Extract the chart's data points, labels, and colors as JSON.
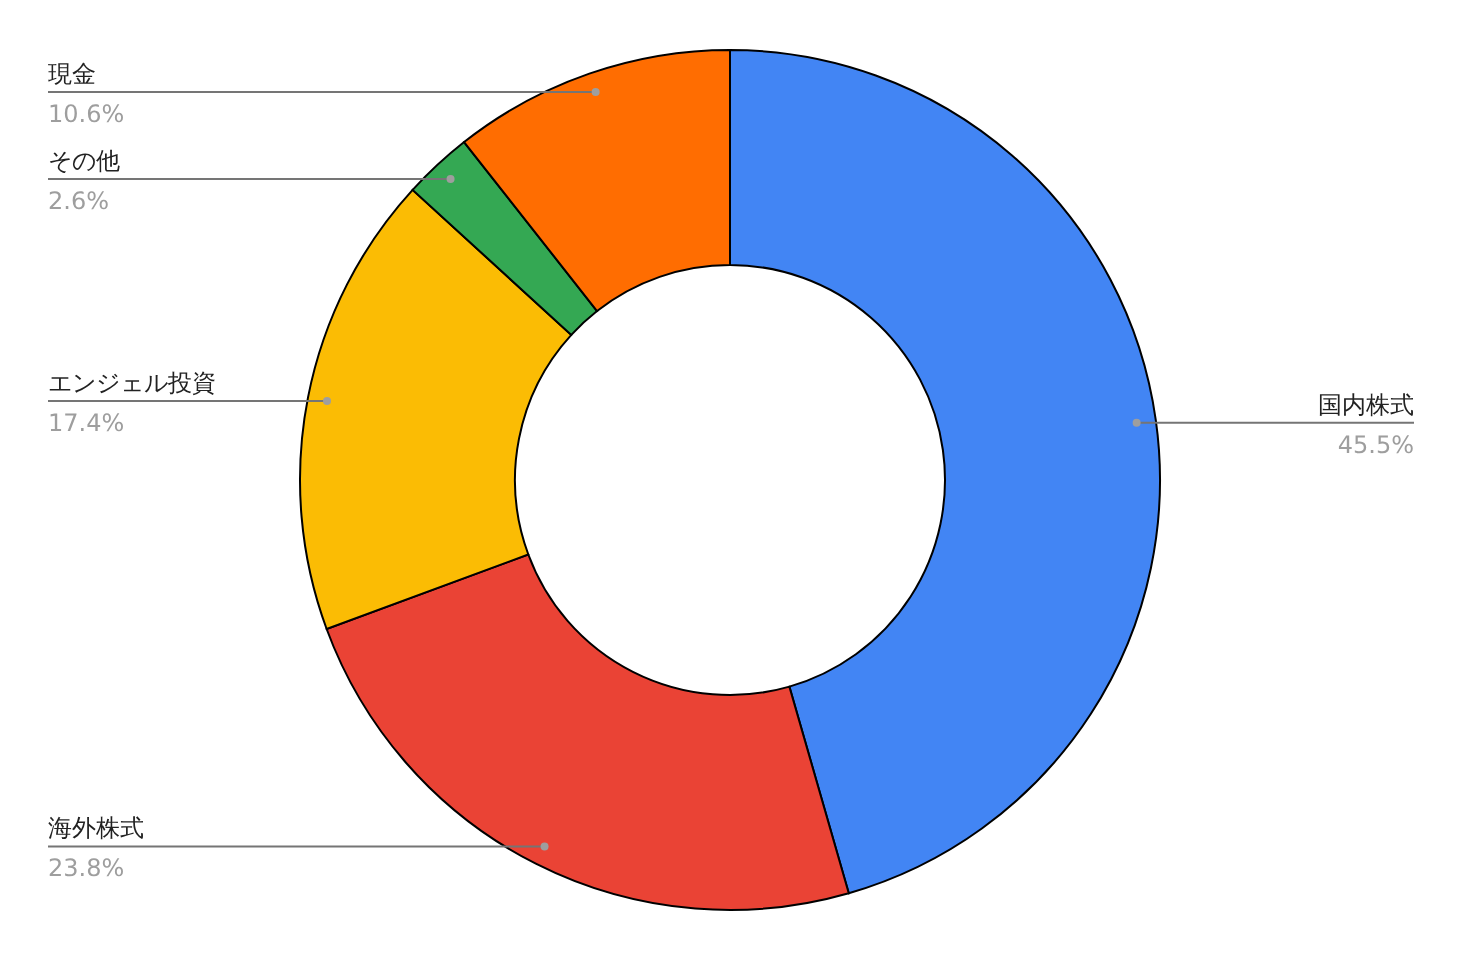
{
  "chart_data": {
    "type": "donut",
    "categories": [
      "国内株式",
      "海外株式",
      "エンジェル投資",
      "その他",
      "現金"
    ],
    "values": [
      45.5,
      23.8,
      17.4,
      2.6,
      10.6
    ],
    "colors": [
      "#4285f4",
      "#ea4335",
      "#fbbc04",
      "#34a853",
      "#ff6d01"
    ],
    "value_labels": [
      "45.5%",
      "23.8%",
      "17.4%",
      "2.6%",
      "10.6%"
    ]
  }
}
